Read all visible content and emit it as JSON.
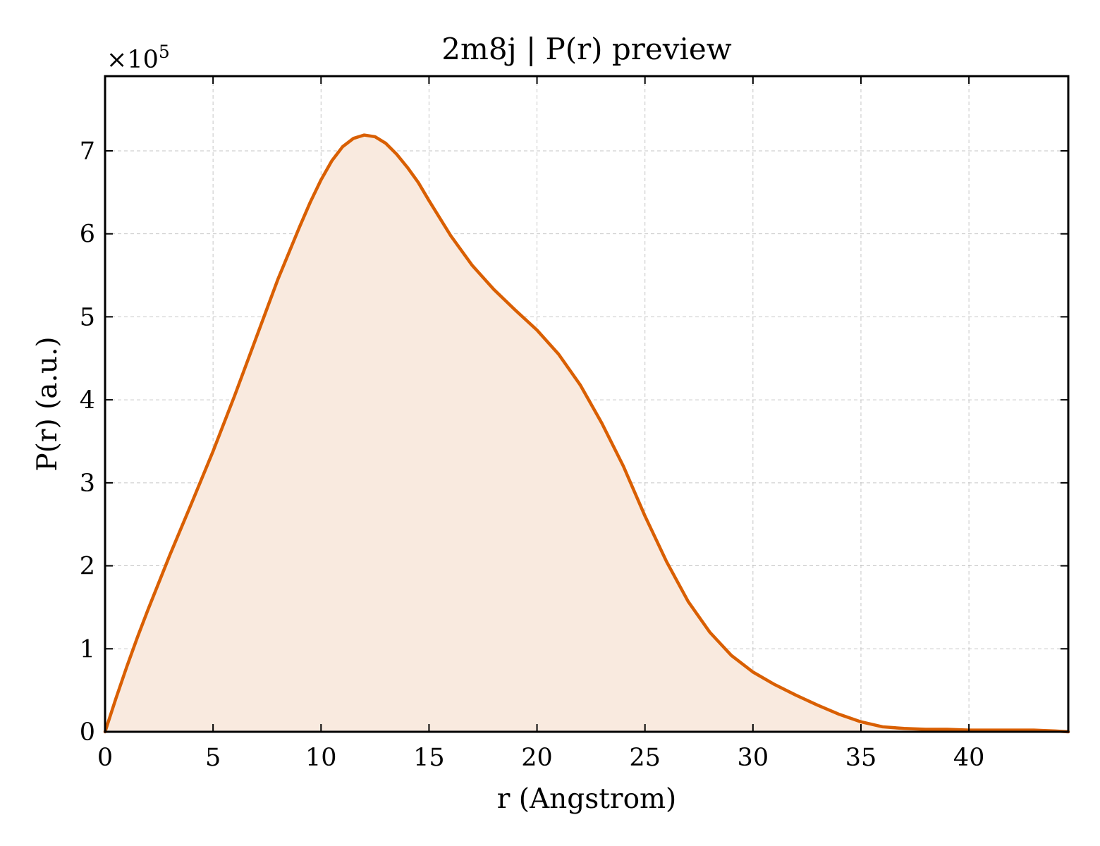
{
  "chart_data": {
    "type": "area",
    "title": "2m8j | P(r) preview",
    "xlabel": "r (Angstrom)",
    "ylabel": "P(r) (a.u.)",
    "y_multiplier_base": "×10",
    "y_multiplier_exp": "5",
    "xlim": [
      0,
      44.6
    ],
    "ylim": [
      0,
      7.9
    ],
    "x_ticks": [
      0,
      5,
      10,
      15,
      20,
      25,
      30,
      35,
      40
    ],
    "y_ticks": [
      0,
      1,
      2,
      3,
      4,
      5,
      6,
      7
    ],
    "grid": true,
    "colors": {
      "line": "#d95f02",
      "fill": "#f9eadf"
    },
    "series": [
      {
        "x": [
          0,
          0.5,
          1,
          1.5,
          2,
          3,
          4,
          5,
          6,
          7,
          8,
          9,
          9.5,
          10,
          10.5,
          11,
          11.5,
          12,
          12.5,
          13,
          13.5,
          14,
          14.5,
          15,
          16,
          17,
          18,
          19,
          20,
          21,
          22,
          23,
          24,
          25,
          26,
          27,
          28,
          29,
          30,
          31,
          32,
          33,
          34,
          35,
          36,
          37,
          38,
          39,
          40,
          41,
          42,
          43,
          44,
          44.6
        ],
        "y": [
          0,
          0.4,
          0.78,
          1.14,
          1.48,
          2.13,
          2.75,
          3.38,
          4.05,
          4.75,
          5.45,
          6.08,
          6.38,
          6.65,
          6.88,
          7.05,
          7.15,
          7.19,
          7.17,
          7.09,
          6.96,
          6.8,
          6.62,
          6.4,
          5.98,
          5.62,
          5.33,
          5.08,
          4.84,
          4.55,
          4.18,
          3.72,
          3.2,
          2.6,
          2.05,
          1.57,
          1.2,
          0.92,
          0.72,
          0.57,
          0.44,
          0.32,
          0.21,
          0.12,
          0.06,
          0.04,
          0.03,
          0.03,
          0.02,
          0.02,
          0.02,
          0.02,
          0.01,
          0
        ]
      }
    ]
  }
}
